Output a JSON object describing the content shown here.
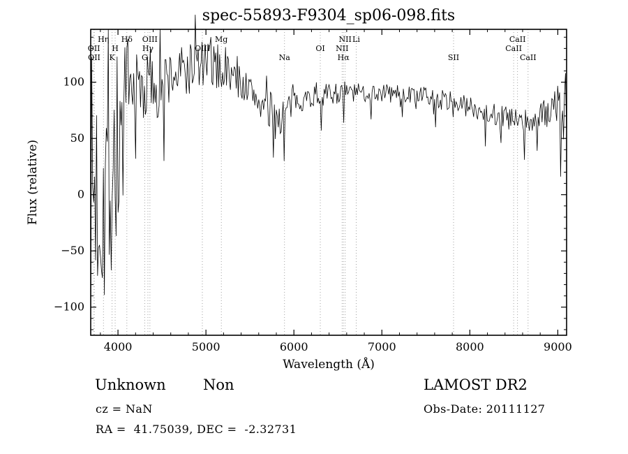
{
  "title": "spec-55893-F9304_sp06-098.fits",
  "footer": {
    "classification_primary": "Unknown",
    "classification_secondary": "Non",
    "survey": "LAMOST DR2",
    "cz": "cz = NaN",
    "obs_date": "Obs-Date: 20111127",
    "coords": "RA =  41.75039, DEC =  -2.32731"
  },
  "chart_data": {
    "type": "line",
    "title": "spec-55893-F9304_sp06-098.fits",
    "xlabel": "Wavelength (Å)",
    "ylabel": "Flux (relative)",
    "xlim": [
      3690,
      9100
    ],
    "ylim": [
      -125,
      147
    ],
    "x_ticks": [
      4000,
      5000,
      6000,
      7000,
      8000,
      9000
    ],
    "y_ticks": [
      -100,
      -50,
      0,
      50,
      100
    ],
    "x_minor_step": 200,
    "y_minor_step": 10,
    "grid": false,
    "background": "#ffffff",
    "line_color": "#000000",
    "marker_line_color": "#979797",
    "noise_seed": 7,
    "spectral_lines": [
      {
        "label": "OII",
        "wavelength": 3727,
        "row": 2
      },
      {
        "label": "OII",
        "wavelength": 3730,
        "row": 3
      },
      {
        "label": "Hη",
        "wavelength": 3835,
        "row": 1
      },
      {
        "label": "K",
        "wavelength": 3933,
        "row": 3
      },
      {
        "label": "H",
        "wavelength": 3968,
        "row": 2
      },
      {
        "label": "Hδ",
        "wavelength": 4101,
        "row": 1
      },
      {
        "label": "G",
        "wavelength": 4304,
        "row": 3
      },
      {
        "label": "Hγ",
        "wavelength": 4340,
        "row": 2
      },
      {
        "label": "OIII",
        "wavelength": 4363,
        "row": 1
      },
      {
        "label": "OIII",
        "wavelength": 4959,
        "row": 2
      },
      {
        "label": "Mg",
        "wavelength": 5175,
        "row": 1
      },
      {
        "label": "Na",
        "wavelength": 5893,
        "row": 3
      },
      {
        "label": "OI",
        "wavelength": 6300,
        "row": 2
      },
      {
        "label": "NII",
        "wavelength": 6548,
        "row": 2
      },
      {
        "label": "Hα",
        "wavelength": 6563,
        "row": 3
      },
      {
        "label": "NII",
        "wavelength": 6583,
        "row": 1
      },
      {
        "label": "Li",
        "wavelength": 6708,
        "row": 1
      },
      {
        "label": "SII",
        "wavelength": 7815,
        "row": 3
      },
      {
        "label": "CaII",
        "wavelength": 8498,
        "row": 2
      },
      {
        "label": "CaII",
        "wavelength": 8542,
        "row": 1
      },
      {
        "label": "CaII",
        "wavelength": 8662,
        "row": 3
      }
    ],
    "envelope": [
      [
        3690,
        0,
        128
      ],
      [
        3780,
        5,
        126
      ],
      [
        3880,
        18,
        118
      ],
      [
        3960,
        32,
        108
      ],
      [
        4040,
        55,
        85
      ],
      [
        4120,
        78,
        55
      ],
      [
        4200,
        92,
        36
      ],
      [
        4300,
        96,
        38
      ],
      [
        4420,
        101,
        30
      ],
      [
        4560,
        104,
        27
      ],
      [
        4700,
        108,
        26
      ],
      [
        4850,
        113,
        25
      ],
      [
        5000,
        116,
        22
      ],
      [
        5150,
        113,
        21
      ],
      [
        5300,
        106,
        17
      ],
      [
        5450,
        96,
        15
      ],
      [
        5600,
        84,
        16
      ],
      [
        5720,
        72,
        20
      ],
      [
        5820,
        68,
        20
      ],
      [
        5920,
        74,
        16
      ],
      [
        6020,
        84,
        11
      ],
      [
        6200,
        87,
        10
      ],
      [
        6400,
        89,
        10
      ],
      [
        6560,
        92,
        10
      ],
      [
        6720,
        90,
        9
      ],
      [
        6900,
        91,
        9
      ],
      [
        7100,
        90,
        9
      ],
      [
        7300,
        89,
        8
      ],
      [
        7500,
        87,
        8
      ],
      [
        7700,
        84,
        9
      ],
      [
        7900,
        80,
        9
      ],
      [
        8100,
        76,
        10
      ],
      [
        8300,
        71,
        12
      ],
      [
        8450,
        67,
        12
      ],
      [
        8600,
        63,
        13
      ],
      [
        8750,
        67,
        12
      ],
      [
        8900,
        74,
        13
      ],
      [
        9000,
        82,
        18
      ],
      [
        9060,
        72,
        35
      ],
      [
        9100,
        55,
        45
      ]
    ],
    "spikes": [
      [
        4520,
        30
      ],
      [
        4880,
        160
      ],
      [
        5772,
        33
      ],
      [
        5893,
        30
      ],
      [
        6310,
        57
      ],
      [
        6565,
        64
      ],
      [
        6880,
        67
      ],
      [
        7230,
        69
      ],
      [
        7610,
        60
      ],
      [
        8180,
        43
      ],
      [
        8350,
        46
      ],
      [
        8620,
        31
      ],
      [
        8760,
        39
      ],
      [
        9035,
        16
      ],
      [
        9082,
        108
      ]
    ]
  }
}
